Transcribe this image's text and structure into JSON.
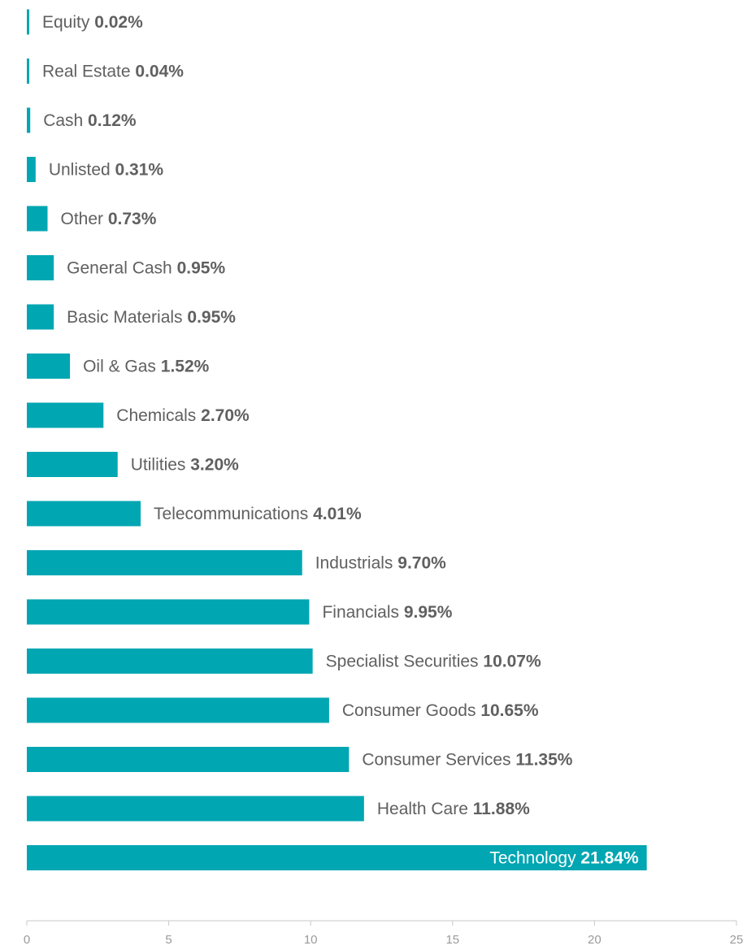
{
  "chart_data": {
    "type": "bar",
    "orientation": "horizontal",
    "categories": [
      "Equity",
      "Real Estate",
      "Cash",
      "Unlisted",
      "Other",
      "General Cash",
      "Basic Materials",
      "Oil & Gas",
      "Chemicals",
      "Utilities",
      "Telecommunications",
      "Industrials",
      "Financials",
      "Specialist Securities",
      "Consumer Goods",
      "Consumer Services",
      "Health Care",
      "Technology"
    ],
    "values": [
      0.02,
      0.04,
      0.12,
      0.31,
      0.73,
      0.95,
      0.95,
      1.52,
      2.7,
      3.2,
      4.01,
      9.7,
      9.95,
      10.07,
      10.65,
      11.35,
      11.88,
      21.84
    ],
    "value_labels": [
      "0.02%",
      "0.04%",
      "0.12%",
      "0.31%",
      "0.73%",
      "0.95%",
      "0.95%",
      "1.52%",
      "2.70%",
      "3.20%",
      "4.01%",
      "9.70%",
      "9.95%",
      "10.07%",
      "10.65%",
      "11.35%",
      "11.88%",
      "21.84%"
    ],
    "xlim": [
      0,
      25
    ],
    "x_ticks": [
      "0",
      "5",
      "10",
      "15",
      "20",
      "25"
    ],
    "title": "",
    "xlabel": "",
    "ylabel": "",
    "grid": false,
    "legend": "none",
    "colors": {
      "bar": "#00a6b2",
      "label_text": "#606060",
      "inside_label_text": "#ffffff",
      "axis": "#c8c8c8",
      "tick_text": "#9a9a9a"
    }
  }
}
